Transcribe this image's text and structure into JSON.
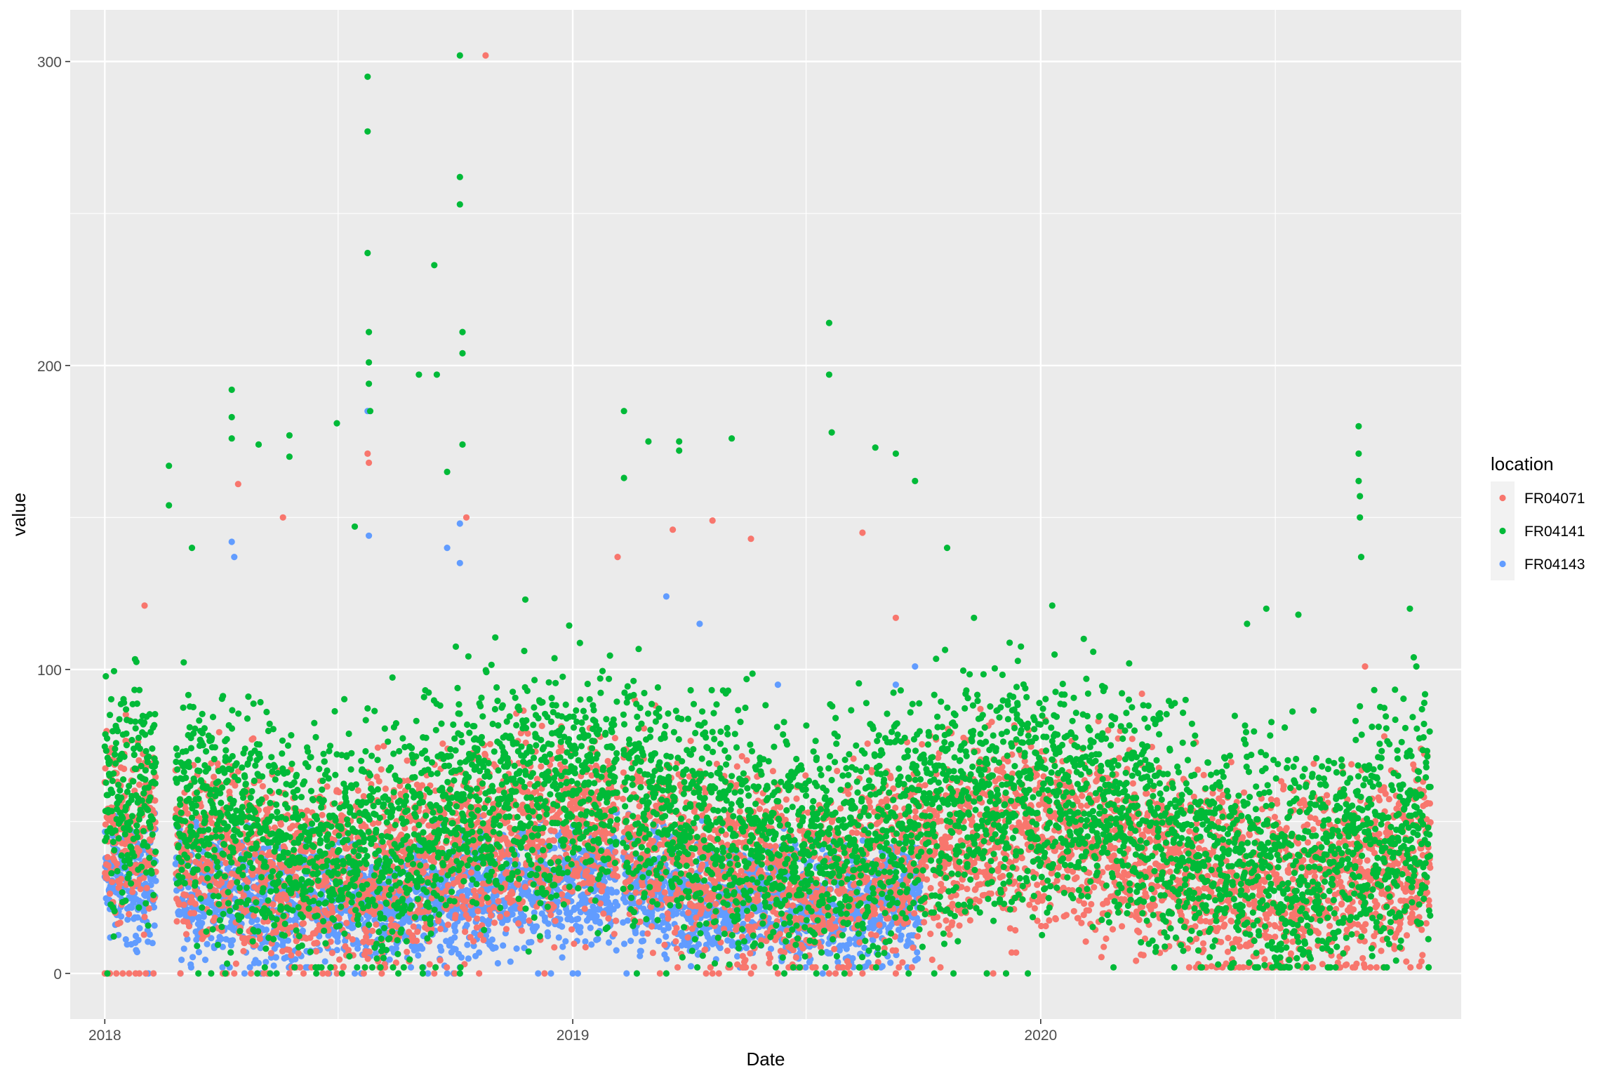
{
  "chart_data": {
    "type": "scatter",
    "title": "",
    "xlabel": "Date",
    "ylabel": "value",
    "xlim": [
      "2017-12-05",
      "2020-11-24"
    ],
    "ylim": [
      -15,
      317
    ],
    "x_ticks": [
      "2018",
      "2019",
      "2020"
    ],
    "x_tick_dates": [
      "2018-01-01",
      "2019-01-01",
      "2020-01-01"
    ],
    "x_minor_dates": [
      "2018-07-02",
      "2019-07-02",
      "2020-07-02"
    ],
    "y_ticks": [
      0,
      100,
      200,
      300
    ],
    "y_tick_labels": [
      "0",
      "100",
      "200",
      "300"
    ],
    "y_minor": [
      50,
      150,
      250
    ],
    "grid": true,
    "background": "#EBEBEB",
    "legend": {
      "title": "location",
      "placement": "right",
      "entries": [
        "FR04071",
        "FR04141",
        "FR04143"
      ]
    },
    "series": [
      {
        "name": "FR04071",
        "color": "#F8766D",
        "date_range": [
          "2018-01-01",
          "2020-10-31"
        ],
        "points": [
          [
            "2018-02-01",
            121
          ],
          [
            "2018-04-15",
            161
          ],
          [
            "2018-05-20",
            150
          ],
          [
            "2018-07-25",
            171
          ],
          [
            "2018-07-26",
            168
          ],
          [
            "2018-10-10",
            150
          ],
          [
            "2018-10-25",
            302
          ],
          [
            "2019-02-05",
            137
          ],
          [
            "2019-03-20",
            146
          ],
          [
            "2019-04-20",
            149
          ],
          [
            "2019-05-20",
            143
          ],
          [
            "2019-08-15",
            145
          ],
          [
            "2019-09-10",
            117
          ],
          [
            "2019-11-15",
            87
          ],
          [
            "2020-02-15",
            83
          ],
          [
            "2020-03-20",
            92
          ],
          [
            "2020-05-01",
            76
          ],
          [
            "2020-08-01",
            69
          ],
          [
            "2020-09-10",
            101
          ],
          [
            "2020-09-25",
            78
          ]
        ],
        "zero_points": [
          "2018-01-01",
          "2018-01-05",
          "2018-01-10",
          "2018-01-15",
          "2018-01-20",
          "2018-01-25",
          "2018-01-28",
          "2018-02-02",
          "2018-02-08",
          "2018-03-01",
          "2018-04-03",
          "2018-04-06",
          "2018-04-12",
          "2018-04-25",
          "2018-05-05",
          "2018-05-08",
          "2018-05-25",
          "2018-06-05",
          "2018-06-20",
          "2018-06-24",
          "2018-07-01",
          "2018-07-22",
          "2018-08-05",
          "2018-09-15",
          "2018-10-01",
          "2018-10-20",
          "2018-12-10",
          "2019-03-10",
          "2019-04-15",
          "2019-04-20",
          "2019-04-25",
          "2019-05-20",
          "2019-06-10",
          "2019-07-20",
          "2019-07-25",
          "2019-08-05",
          "2019-08-15",
          "2019-09-10",
          "2019-11-20",
          "2019-11-25",
          "2019-12-05"
        ]
      },
      {
        "name": "FR04141",
        "color": "#00BA38",
        "date_range": [
          "2018-01-01",
          "2020-10-31"
        ],
        "points": [
          [
            "2018-02-20",
            167
          ],
          [
            "2018-02-20",
            154
          ],
          [
            "2018-03-10",
            140
          ],
          [
            "2018-04-10",
            192
          ],
          [
            "2018-04-10",
            183
          ],
          [
            "2018-04-10",
            176
          ],
          [
            "2018-05-01",
            174
          ],
          [
            "2018-05-25",
            177
          ],
          [
            "2018-05-25",
            170
          ],
          [
            "2018-07-01",
            181
          ],
          [
            "2018-07-15",
            147
          ],
          [
            "2018-07-25",
            295
          ],
          [
            "2018-07-25",
            277
          ],
          [
            "2018-07-25",
            237
          ],
          [
            "2018-07-26",
            211
          ],
          [
            "2018-07-26",
            201
          ],
          [
            "2018-07-26",
            194
          ],
          [
            "2018-07-27",
            185
          ],
          [
            "2018-09-03",
            197
          ],
          [
            "2018-09-15",
            233
          ],
          [
            "2018-09-17",
            197
          ],
          [
            "2018-09-25",
            165
          ],
          [
            "2018-10-05",
            302
          ],
          [
            "2018-10-05",
            262
          ],
          [
            "2018-10-05",
            253
          ],
          [
            "2018-10-07",
            211
          ],
          [
            "2018-10-07",
            204
          ],
          [
            "2018-10-07",
            174
          ],
          [
            "2018-11-25",
            123
          ],
          [
            "2019-02-10",
            185
          ],
          [
            "2019-02-10",
            163
          ],
          [
            "2019-03-01",
            175
          ],
          [
            "2019-03-25",
            172
          ],
          [
            "2019-03-25",
            175
          ],
          [
            "2019-05-05",
            176
          ],
          [
            "2019-07-20",
            214
          ],
          [
            "2019-07-20",
            197
          ],
          [
            "2019-07-22",
            178
          ],
          [
            "2019-08-25",
            173
          ],
          [
            "2019-09-10",
            171
          ],
          [
            "2019-09-25",
            162
          ],
          [
            "2019-10-20",
            140
          ],
          [
            "2019-11-10",
            117
          ],
          [
            "2020-01-10",
            121
          ],
          [
            "2020-03-10",
            102
          ],
          [
            "2020-06-10",
            115
          ],
          [
            "2020-06-25",
            120
          ],
          [
            "2020-07-20",
            118
          ],
          [
            "2020-09-05",
            180
          ],
          [
            "2020-09-05",
            171
          ],
          [
            "2020-09-05",
            162
          ],
          [
            "2020-09-06",
            157
          ],
          [
            "2020-09-06",
            150
          ],
          [
            "2020-09-07",
            137
          ],
          [
            "2020-10-15",
            120
          ],
          [
            "2020-10-18",
            104
          ],
          [
            "2020-10-20",
            101
          ]
        ],
        "zero_points": [
          "2018-01-03",
          "2018-03-15",
          "2018-03-25",
          "2018-04-05",
          "2018-04-30",
          "2018-05-10",
          "2018-05-15",
          "2018-06-15",
          "2018-07-05",
          "2018-08-18",
          "2018-09-06",
          "2018-10-05",
          "2019-02-20",
          "2019-03-15",
          "2019-06-15",
          "2019-07-10",
          "2019-08-01",
          "2019-09-20",
          "2019-10-10",
          "2019-10-25",
          "2019-11-20",
          "2019-12-05",
          "2019-12-22"
        ]
      },
      {
        "name": "FR04143",
        "color": "#619CFF",
        "date_range": [
          "2018-01-01",
          "2019-09-30"
        ],
        "points": [
          [
            "2018-04-10",
            142
          ],
          [
            "2018-04-12",
            137
          ],
          [
            "2018-07-25",
            185
          ],
          [
            "2018-07-26",
            144
          ],
          [
            "2018-09-25",
            140
          ],
          [
            "2018-10-05",
            148
          ],
          [
            "2018-10-05",
            135
          ],
          [
            "2019-03-15",
            124
          ],
          [
            "2019-04-10",
            115
          ],
          [
            "2019-06-10",
            95
          ],
          [
            "2019-09-10",
            95
          ],
          [
            "2019-09-25",
            101
          ]
        ],
        "zero_points": [
          "2018-01-02",
          "2018-02-04",
          "2018-03-01",
          "2018-04-05",
          "2018-04-20",
          "2018-05-03",
          "2018-06-25",
          "2018-07-15",
          "2018-07-20",
          "2018-09-10",
          "2018-09-25",
          "2018-09-30",
          "2018-10-05",
          "2018-12-05",
          "2018-12-15",
          "2019-01-01",
          "2019-01-05",
          "2019-02-12",
          "2019-07-15",
          "2019-07-20"
        ]
      }
    ]
  }
}
